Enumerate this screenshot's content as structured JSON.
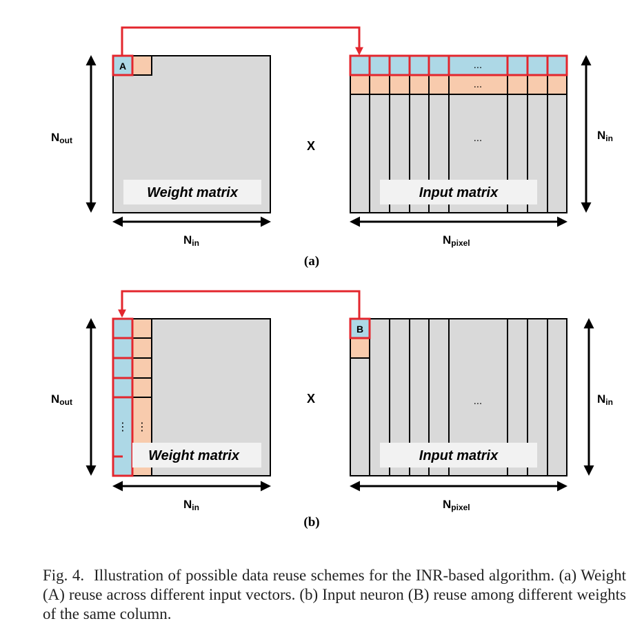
{
  "panel_a": {
    "multiply_sign": "X",
    "weight_matrix_label": "Weight matrix",
    "input_matrix_label": "Input matrix",
    "weight_element_label": "A",
    "rows_label": {
      "main": "N",
      "sub": "out"
    },
    "in_label_left": {
      "main": "N",
      "sub": "in"
    },
    "in_label_right": {
      "main": "N",
      "sub": "in"
    },
    "cols_label": {
      "main": "N",
      "sub": "pixel"
    },
    "ellipsis": "...",
    "panel_label": "(a)"
  },
  "panel_b": {
    "multiply_sign": "X",
    "weight_matrix_label": "Weight matrix",
    "input_matrix_label": "Input matrix",
    "input_element_label": "B",
    "rows_label": {
      "main": "N",
      "sub": "out"
    },
    "in_label_left": {
      "main": "N",
      "sub": "in"
    },
    "in_label_right": {
      "main": "N",
      "sub": "in"
    },
    "cols_label": {
      "main": "N",
      "sub": "pixel"
    },
    "ellipsis": "...",
    "vertical_ellipsis": "⋮",
    "panel_label": "(b)"
  },
  "caption": {
    "fig_number": "Fig. 4.",
    "text": "Illustration of possible data reuse schemes for the INR-based algorithm. (a) Weight (A) reuse across different input vectors. (b) Input neuron (B) reuse among different weights of the same column."
  },
  "colors": {
    "matrix_fill": "#d9d9d9",
    "label_box": "#f2f2f2",
    "blue_cell": "#add8e6",
    "peach_cell": "#f8cbad",
    "highlight": "#e3262d"
  }
}
